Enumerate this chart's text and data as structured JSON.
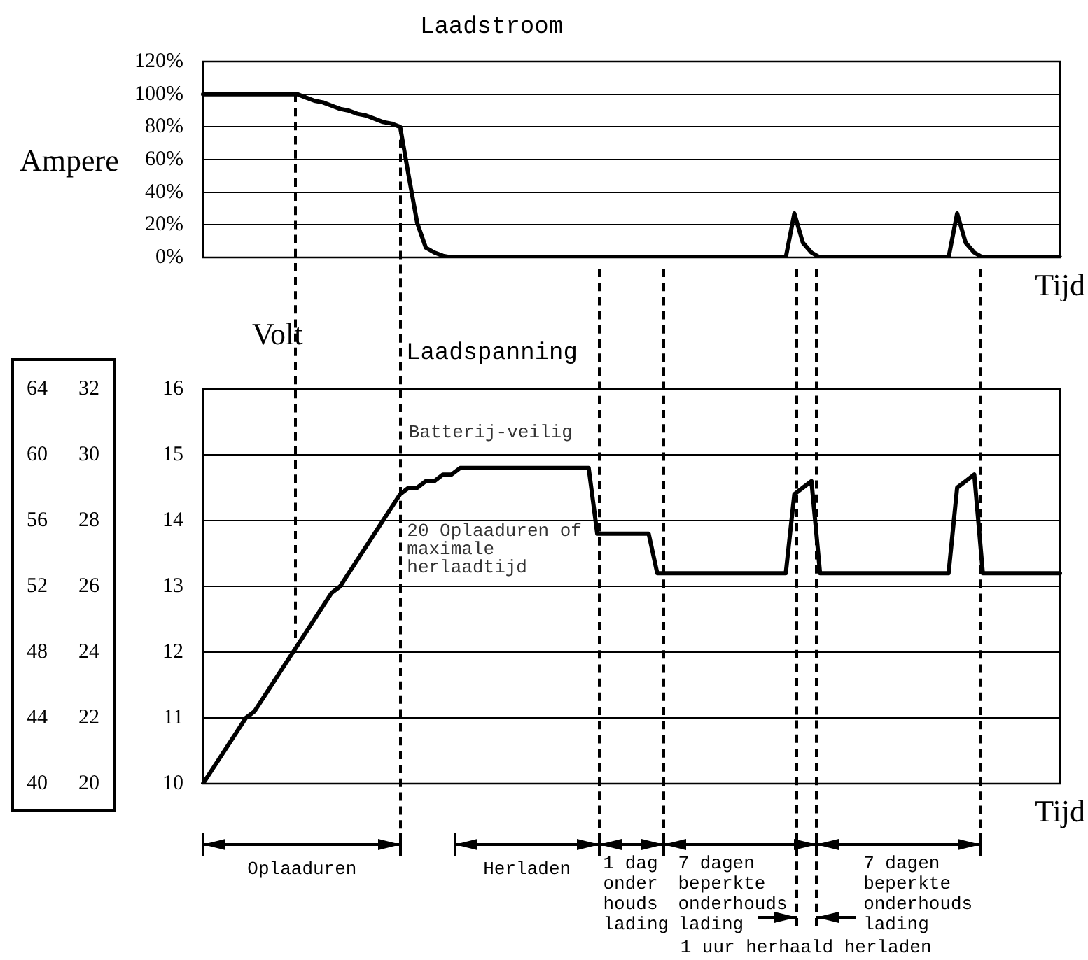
{
  "chart_data": [
    {
      "type": "line",
      "title": "Laadstroom",
      "ylabel": "Ampere",
      "xlabel": "Tijd",
      "categories": [
        null,
        null,
        null,
        null,
        null,
        null,
        null,
        null,
        null,
        null,
        null,
        null,
        null,
        null,
        null,
        null,
        null,
        null,
        null,
        null,
        null,
        null,
        null,
        null,
        null,
        null,
        null,
        null,
        null,
        null,
        null,
        null,
        null,
        null,
        null,
        null,
        null,
        null,
        null,
        null,
        null,
        null,
        null,
        null,
        null,
        null,
        null,
        null,
        null,
        null,
        null,
        null,
        null,
        null,
        null,
        null,
        null,
        null,
        null,
        null,
        null,
        null,
        null,
        null,
        null,
        null,
        null,
        null,
        null,
        null,
        null,
        null,
        null,
        null,
        null,
        null,
        null,
        null,
        null,
        null,
        null,
        null,
        null,
        null,
        null,
        null,
        null,
        null,
        null,
        null,
        null,
        null,
        null,
        null,
        null,
        null,
        null,
        null,
        null,
        null,
        null
      ],
      "series": [
        {
          "color": "#000000",
          "values": [
            100,
            100,
            100,
            100,
            100,
            100,
            100,
            100,
            100,
            100,
            100,
            100,
            98,
            96,
            95,
            93,
            91,
            90,
            88,
            87,
            85,
            83,
            82,
            80,
            50,
            21,
            6,
            3,
            1,
            0,
            0,
            0,
            0,
            0,
            0,
            0,
            0,
            0,
            0,
            0,
            0,
            0,
            0,
            0,
            0,
            0,
            0,
            0,
            0,
            0,
            0,
            0,
            0,
            0,
            0,
            0,
            0,
            0,
            0,
            0,
            0,
            0,
            0,
            0,
            0,
            0,
            0,
            0,
            0,
            27,
            9,
            3,
            0,
            0,
            0,
            0,
            0,
            0,
            0,
            0,
            0,
            0,
            0,
            0,
            0,
            0,
            0,
            0,
            27,
            9,
            3,
            0,
            0,
            0,
            0,
            0,
            0,
            0,
            0,
            0,
            0
          ]
        }
      ],
      "ylim": [
        0,
        120
      ],
      "yticks": [
        {
          "value": 0,
          "label": "0%"
        },
        {
          "value": 20,
          "label": "20%"
        },
        {
          "value": 40,
          "label": "40%"
        },
        {
          "value": 60,
          "label": "60%"
        },
        {
          "value": 80,
          "label": "80%"
        },
        {
          "value": 100,
          "label": "100%"
        },
        {
          "value": 120,
          "label": "120%"
        }
      ],
      "tick_labels": "y",
      "grid": "y",
      "marker": "none",
      "line_style": "solid"
    },
    {
      "type": "line",
      "title": "Laadspanning",
      "ylabel": "Volt",
      "xlabel": "Tijd",
      "categories": [
        null,
        null,
        null,
        null,
        null,
        null,
        null,
        null,
        null,
        null,
        null,
        null,
        null,
        null,
        null,
        null,
        null,
        null,
        null,
        null,
        null,
        null,
        null,
        null,
        null,
        null,
        null,
        null,
        null,
        null,
        null,
        null,
        null,
        null,
        null,
        null,
        null,
        null,
        null,
        null,
        null,
        null,
        null,
        null,
        null,
        null,
        null,
        null,
        null,
        null,
        null,
        null,
        null,
        null,
        null,
        null,
        null,
        null,
        null,
        null,
        null,
        null,
        null,
        null,
        null,
        null,
        null,
        null,
        null,
        null,
        null,
        null,
        null,
        null,
        null,
        null,
        null,
        null,
        null,
        null,
        null,
        null,
        null,
        null,
        null,
        null,
        null,
        null,
        null,
        null,
        null,
        null,
        null,
        null,
        null,
        null,
        null,
        null,
        null,
        null,
        null
      ],
      "series": [
        {
          "color": "#000000",
          "values": [
            10,
            10.2,
            10.4,
            10.6,
            10.8,
            11,
            11.1,
            11.3,
            11.5,
            11.7,
            11.9,
            12.1,
            12.3,
            12.5,
            12.7,
            12.9,
            13,
            13.2,
            13.4,
            13.6,
            13.8,
            14,
            14.2,
            14.4,
            14.5,
            14.5,
            14.6,
            14.6,
            14.7,
            14.7,
            14.8,
            14.8,
            14.8,
            14.8,
            14.8,
            14.8,
            14.8,
            14.8,
            14.8,
            14.8,
            14.8,
            14.8,
            14.8,
            14.8,
            14.8,
            14.8,
            13.8,
            13.8,
            13.8,
            13.8,
            13.8,
            13.8,
            13.8,
            13.2,
            13.2,
            13.2,
            13.2,
            13.2,
            13.2,
            13.2,
            13.2,
            13.2,
            13.2,
            13.2,
            13.2,
            13.2,
            13.2,
            13.2,
            13.2,
            14.4,
            14.5,
            14.6,
            13.2,
            13.2,
            13.2,
            13.2,
            13.2,
            13.2,
            13.2,
            13.2,
            13.2,
            13.2,
            13.2,
            13.2,
            13.2,
            13.2,
            13.2,
            13.2,
            14.5,
            14.6,
            14.7,
            13.2,
            13.2,
            13.2,
            13.2,
            13.2,
            13.2,
            13.2,
            13.2,
            13.2,
            13.2
          ]
        }
      ],
      "ylim": [
        10,
        16
      ],
      "yticks": [
        10,
        11,
        12,
        13,
        14,
        15,
        16
      ],
      "y2lim": [
        40,
        64
      ],
      "y2ticks": [
        40,
        44,
        48,
        52,
        56,
        60,
        64
      ],
      "y3lim": [
        20,
        32
      ],
      "y3ticks": [
        20,
        22,
        24,
        26,
        28,
        30,
        32
      ],
      "tick_labels": "y",
      "grid": "y",
      "marker": "none",
      "line_style": "solid",
      "annotations": [
        "Batterij-veilig",
        "20 Oplaaduren of maximale herlaadtijd",
        "Oplaaduren",
        "Herladen",
        "1 dag onder houds lading",
        "7 dagen beperkte onderhouds lading",
        "1 uur herhaald herladen",
        "7 dagen beperkte onderhouds lading"
      ]
    }
  ]
}
